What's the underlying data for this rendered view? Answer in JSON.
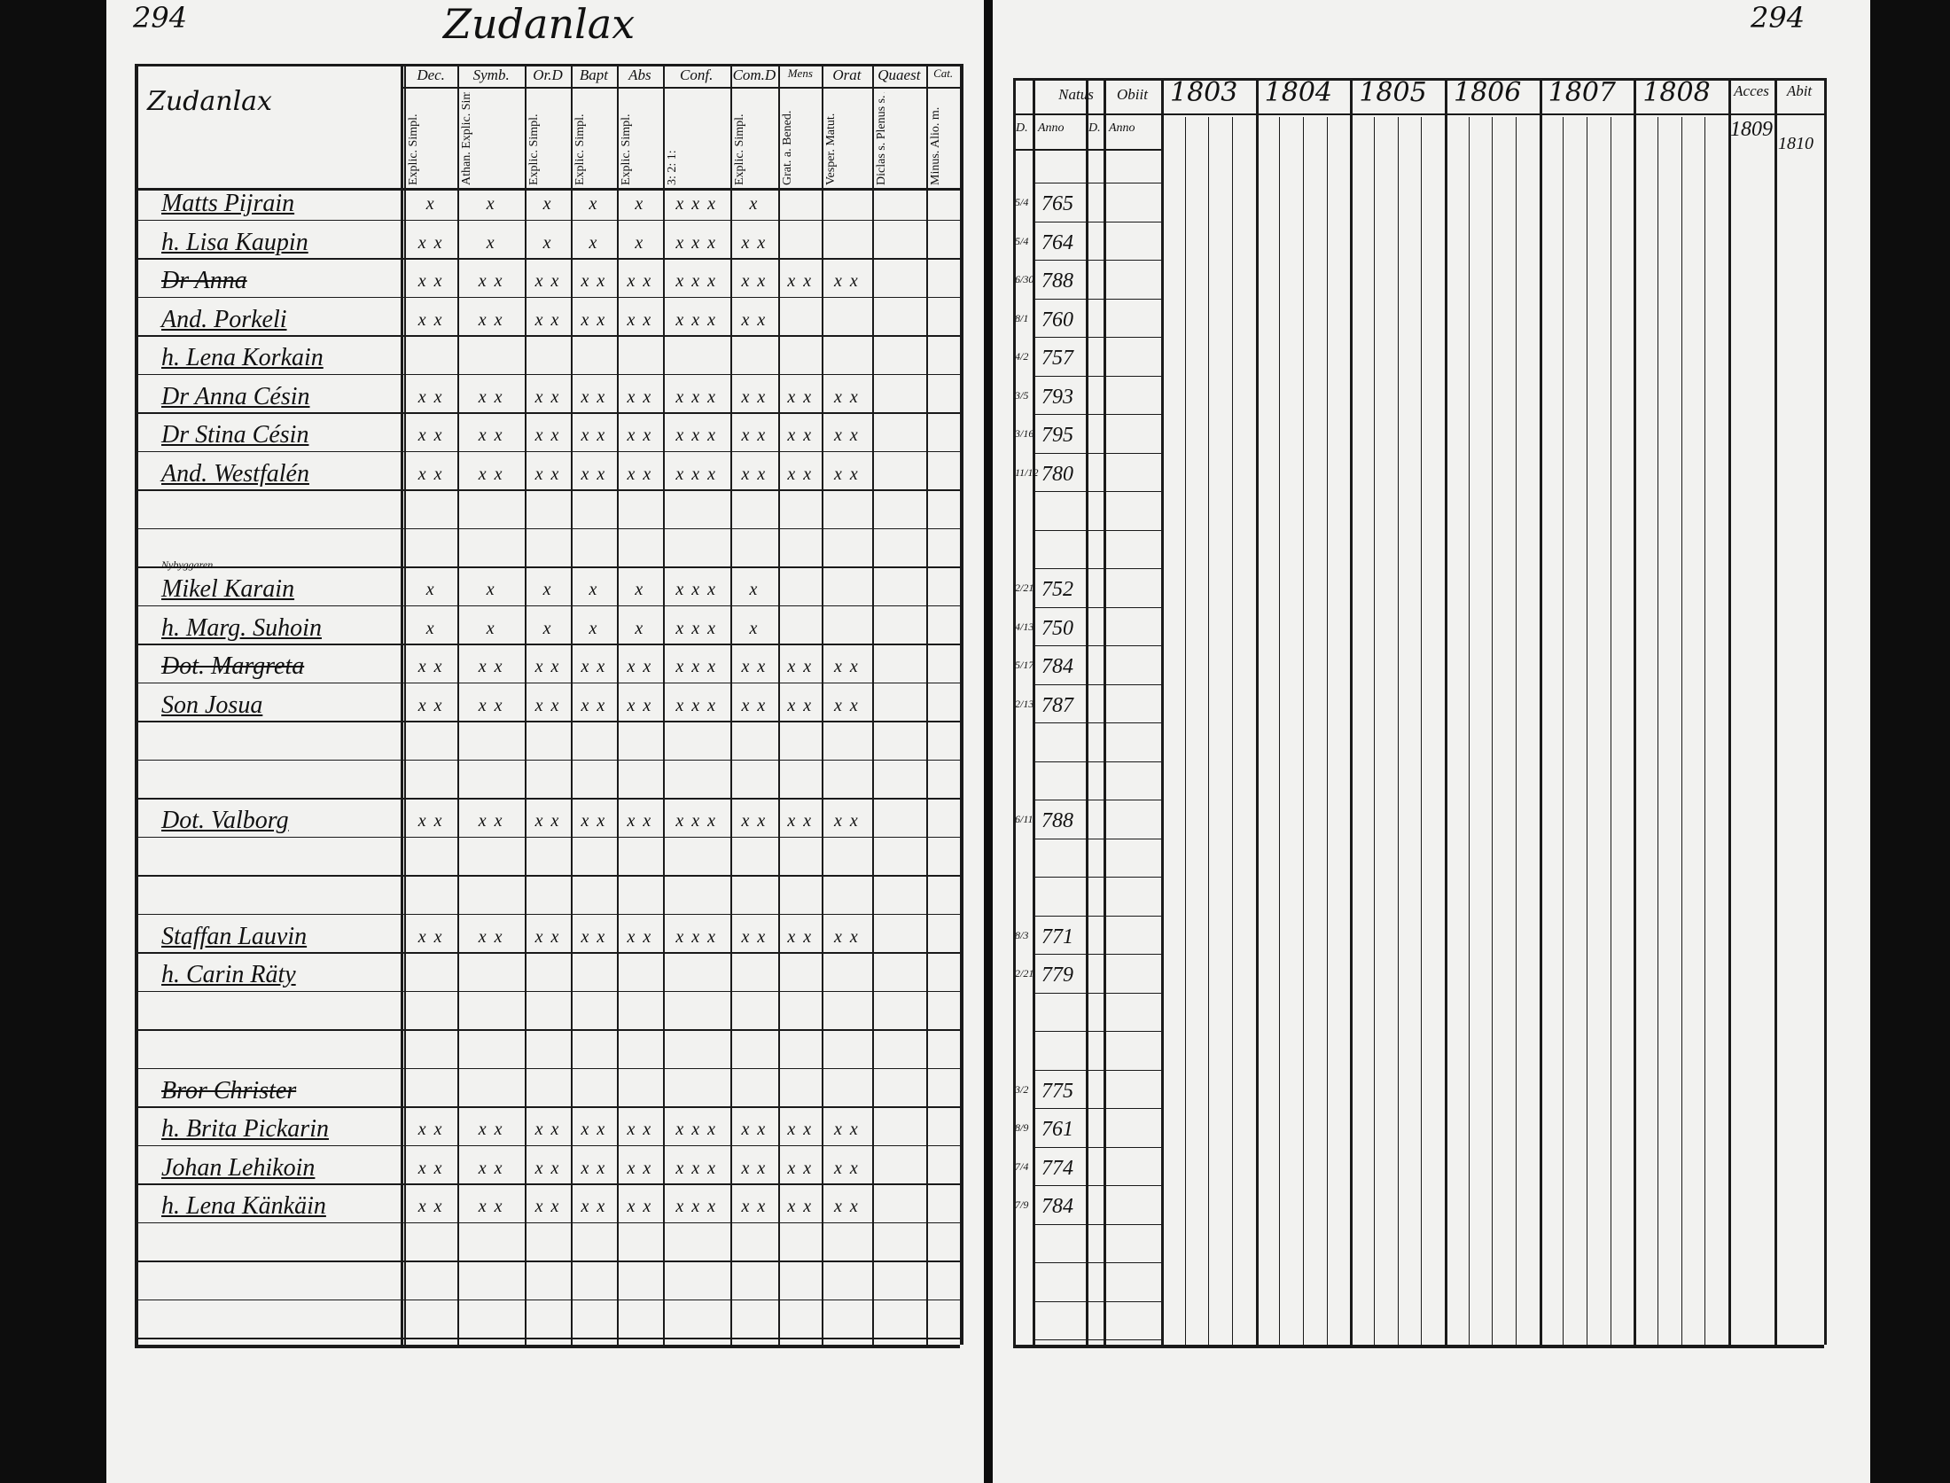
{
  "page_numbers": {
    "left": "294",
    "right": "294"
  },
  "title": "Zudanlax",
  "left_table": {
    "village": "Zudanlax",
    "columns": [
      {
        "head": "Dec.",
        "sub": "Explic. Simpl."
      },
      {
        "head": "Symb.",
        "sub": "Athan. Explic. Simpl."
      },
      {
        "head": "Or.D",
        "sub": "Explic. Simpl."
      },
      {
        "head": "Bapt",
        "sub": "Explic. Simpl."
      },
      {
        "head": "Abs",
        "sub": "Explic. Simpl."
      },
      {
        "head": "Conf.",
        "sub": "3: 2: 1:"
      },
      {
        "head": "Com.D",
        "sub": "Explic. Simpl."
      },
      {
        "head": "Mens",
        "sub": "Grat. a. Bened."
      },
      {
        "head": "Orat",
        "sub": "Vesper. Matut."
      },
      {
        "head": "Quaest",
        "sub": "Diclas s. Plenus s. Alio. m"
      },
      {
        "head": "Cat.",
        "sub": "Minus. Alio. m."
      }
    ]
  },
  "right_table": {
    "natus": {
      "head": "Natus",
      "day": "D.",
      "year": "Anno"
    },
    "obiit": {
      "head": "Obiit",
      "day": "D.",
      "year": "Anno"
    },
    "years": [
      "1803",
      "1804",
      "1805",
      "1806",
      "1807",
      "1808"
    ],
    "acces": "Acces",
    "abit": "Abit",
    "acces_year": "1809",
    "abit_year": "1810"
  },
  "rows": [
    {
      "name": "Matts Pijrain",
      "marks": [
        "x",
        "x",
        "x",
        "x",
        "x",
        "x x x",
        "x"
      ],
      "born_day": "5/4",
      "born_year": "765"
    },
    {
      "name": "h. Lisa Kaupin",
      "marks": [
        "x x",
        "x",
        "x",
        "x",
        "x",
        "x x x",
        "x x"
      ],
      "born_day": "5/4",
      "born_year": "764"
    },
    {
      "name": "Dr Anna",
      "struck": true,
      "marks": [
        "x x",
        "x x",
        "x x",
        "x x",
        "x x",
        "x x x",
        "x x",
        "x x",
        "x x"
      ],
      "born_day": "6/30",
      "born_year": "788"
    },
    {
      "name": "And. Porkeli",
      "marks": [
        "x x",
        "x x",
        "x x",
        "x x",
        "x x",
        "x x x",
        "x x"
      ],
      "born_day": "8/1",
      "born_year": "760"
    },
    {
      "name": "h. Lena Korkain",
      "born_day": "4/2",
      "born_year": "757"
    },
    {
      "name": "Dr Anna Césin",
      "marks": [
        "x x",
        "x x",
        "x x",
        "x x",
        "x x",
        "x x x",
        "x x",
        "x x",
        "x x"
      ],
      "born_day": "3/5",
      "born_year": "793"
    },
    {
      "name": "Dr Stina Césin",
      "marks": [
        "x x",
        "x x",
        "x x",
        "x x",
        "x x",
        "x x x",
        "x x",
        "x x",
        "x x"
      ],
      "born_day": "3/16",
      "born_year": "795"
    },
    {
      "name": "And. Westfalén",
      "marks": [
        "x x",
        "x x",
        "x x",
        "x x",
        "x x",
        "x x x",
        "x x",
        "x x",
        "x x"
      ],
      "born_day": "11/12",
      "born_year": "780"
    },
    {
      "name": "Mikel Karain",
      "note": "Nybyggaren",
      "marks": [
        "x",
        "x",
        "x",
        "x",
        "x",
        "x x x",
        "x"
      ],
      "born_day": "2/21",
      "born_year": "752"
    },
    {
      "name": "h. Marg. Suhoin",
      "marks": [
        "x",
        "x",
        "x",
        "x",
        "x",
        "x x x",
        "x"
      ],
      "born_day": "4/13",
      "born_year": "750"
    },
    {
      "name": "Dot. Margreta",
      "struck": true,
      "marks": [
        "x x",
        "x x",
        "x x",
        "x x",
        "x x",
        "x x x",
        "x x",
        "x x",
        "x x"
      ],
      "born_day": "5/17",
      "born_year": "784"
    },
    {
      "name": "Son Josua",
      "marks": [
        "x x",
        "x x",
        "x x",
        "x x",
        "x x",
        "x x x",
        "x x",
        "x x",
        "x x"
      ],
      "born_day": "2/13",
      "born_year": "787"
    },
    {
      "name": "Dot. Valborg",
      "marks": [
        "x x",
        "x x",
        "x x",
        "x x",
        "x x",
        "x x x",
        "x x",
        "x x",
        "x x"
      ],
      "born_day": "6/11",
      "born_year": "788"
    },
    {
      "name": "Staffan Lauvin",
      "marks": [
        "x x",
        "x x",
        "x x",
        "x x",
        "x x",
        "x x x",
        "x x",
        "x x",
        "x x"
      ],
      "born_day": "8/3",
      "born_year": "771"
    },
    {
      "name": "h. Carin Räty",
      "born_day": "2/21",
      "born_year": "779"
    },
    {
      "name": "Bror Christer",
      "struck": true,
      "born_day": "3/2",
      "born_year": "775"
    },
    {
      "name": "h. Brita Pickarin",
      "marks": [
        "x x",
        "x x",
        "x x",
        "x x",
        "x x",
        "x x x",
        "x x",
        "x x",
        "x x"
      ],
      "born_day": "8/9",
      "born_year": "761"
    },
    {
      "name": "Johan Lehikoin",
      "marks": [
        "x x",
        "x x",
        "x x",
        "x x",
        "x x",
        "x x x",
        "x x",
        "x x",
        "x x"
      ],
      "born_day": "7/4",
      "born_year": "774"
    },
    {
      "name": "h. Lena Känkäin",
      "marks": [
        "x x",
        "x x",
        "x x",
        "x x",
        "x x",
        "x x x",
        "x x",
        "x x",
        "x x"
      ],
      "born_day": "7/9",
      "born_year": "784"
    }
  ]
}
